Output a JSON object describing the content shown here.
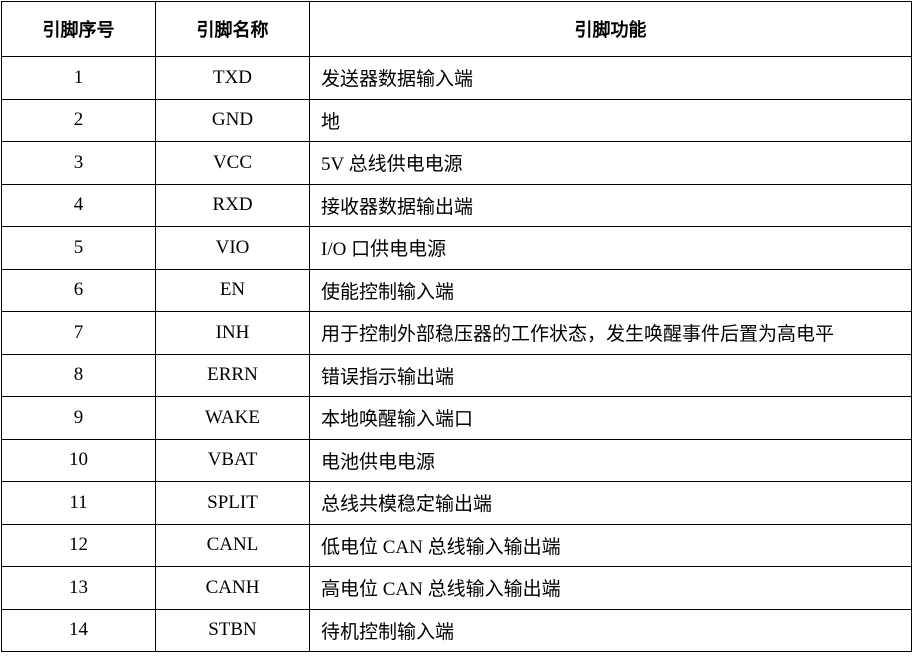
{
  "table": {
    "headers": [
      "引脚序号",
      "引脚名称",
      "引脚功能"
    ],
    "rows": [
      {
        "no": "1",
        "name": "TXD",
        "function": "发送器数据输入端"
      },
      {
        "no": "2",
        "name": "GND",
        "function": "地"
      },
      {
        "no": "3",
        "name": "VCC",
        "function": "5V 总线供电电源"
      },
      {
        "no": "4",
        "name": "RXD",
        "function": "接收器数据输出端"
      },
      {
        "no": "5",
        "name": "VIO",
        "function": "I/O 口供电电源"
      },
      {
        "no": "6",
        "name": "EN",
        "function": "使能控制输入端"
      },
      {
        "no": "7",
        "name": "INH",
        "function": "用于控制外部稳压器的工作状态，发生唤醒事件后置为高电平"
      },
      {
        "no": "8",
        "name": "ERRN",
        "function": "错误指示输出端"
      },
      {
        "no": "9",
        "name": "WAKE",
        "function": "本地唤醒输入端口"
      },
      {
        "no": "10",
        "name": "VBAT",
        "function": "电池供电电源"
      },
      {
        "no": "11",
        "name": "SPLIT",
        "function": "总线共模稳定输出端"
      },
      {
        "no": "12",
        "name": "CANL",
        "function": "低电位 CAN 总线输入输出端"
      },
      {
        "no": "13",
        "name": "CANH",
        "function": "高电位 CAN 总线输入输出端"
      },
      {
        "no": "14",
        "name": "STBN",
        "function": "待机控制输入端"
      }
    ]
  }
}
